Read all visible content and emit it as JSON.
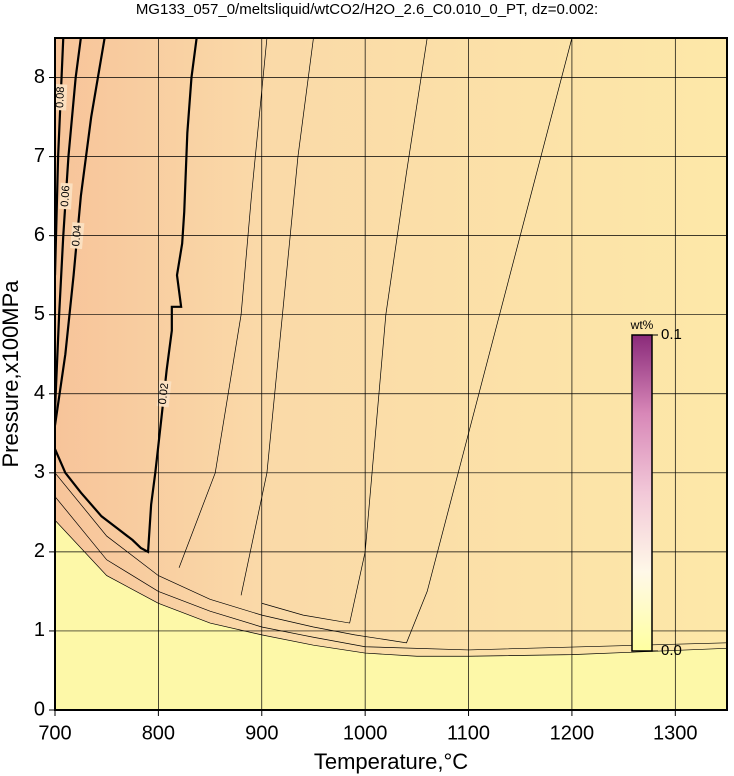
{
  "chart_data": {
    "type": "contour",
    "title": "MG133_057_0/meltsliquid/wtCO2/H2O_2.6_C0.010_0_PT, dz=0.002:",
    "xlabel": "Temperature,°C",
    "ylabel": "Pressure,x100MPa",
    "xlim": [
      700,
      1350
    ],
    "ylim": [
      0,
      8.5
    ],
    "xticks": [
      700,
      800,
      900,
      1000,
      1100,
      1200,
      1300
    ],
    "yticks": [
      0,
      1,
      2,
      3,
      4,
      5,
      6,
      7,
      8
    ],
    "grid": true,
    "colorbar": {
      "label": "wt%",
      "clim": [
        0,
        0.1
      ],
      "ticks": [
        {
          "value": 0,
          "label": "0.0"
        },
        0.1
      ]
    },
    "contours": [
      {
        "level": 0.001,
        "bold": false,
        "x": [
          700,
          750,
          800,
          850,
          900,
          950,
          1000,
          1050,
          1100,
          1200,
          1350
        ],
        "y": [
          2.4,
          1.7,
          1.35,
          1.1,
          0.95,
          0.82,
          0.72,
          0.68,
          0.68,
          0.7,
          0.78
        ]
      },
      {
        "level": 0.005,
        "bold": false,
        "x": [
          700,
          750,
          800,
          850,
          900,
          950,
          1000,
          1100,
          1350
        ],
        "y": [
          2.7,
          1.9,
          1.5,
          1.25,
          1.05,
          0.92,
          0.8,
          0.76,
          0.85
        ]
      },
      {
        "level": 0.01,
        "bold": false,
        "x": [
          700,
          750,
          800,
          850,
          900,
          950,
          990,
          1040,
          1060,
          1090,
          1130,
          1160,
          1200
        ],
        "y": [
          3.0,
          2.2,
          1.7,
          1.4,
          1.2,
          1.05,
          0.95,
          0.85,
          1.5,
          3.0,
          5.0,
          6.5,
          8.5
        ]
      },
      {
        "level": 0.012,
        "bold": false,
        "x": [
          900,
          940,
          985,
          1000,
          1010,
          1020,
          1040,
          1060
        ],
        "y": [
          1.35,
          1.2,
          1.1,
          2.0,
          3.5,
          5.0,
          6.8,
          8.5
        ]
      },
      {
        "level": 0.014,
        "bold": false,
        "x": [
          880,
          905,
          920,
          935,
          950
        ],
        "y": [
          1.45,
          3.0,
          5.0,
          7.0,
          8.5
        ]
      },
      {
        "level": 0.018,
        "bold": false,
        "x": [
          820,
          855,
          880,
          890,
          905
        ],
        "y": [
          1.8,
          3.0,
          5.0,
          6.5,
          8.5
        ]
      },
      {
        "level": 0.02,
        "bold": true,
        "x": [
          700,
          710,
          725,
          745,
          760,
          775,
          783,
          790,
          793,
          797,
          803,
          808,
          813,
          813,
          822,
          820,
          818,
          823,
          825,
          828,
          832,
          837
        ],
        "y": [
          3.3,
          3.0,
          2.75,
          2.45,
          2.3,
          2.15,
          2.05,
          2.0,
          2.6,
          3.0,
          3.7,
          4.3,
          4.8,
          5.1,
          5.1,
          5.3,
          5.5,
          5.9,
          6.3,
          7.3,
          8.0,
          8.5
        ]
      },
      {
        "level": 0.04,
        "bold": true,
        "x": [
          700,
          710,
          718,
          725,
          735,
          748
        ],
        "y": [
          3.6,
          4.5,
          5.5,
          6.5,
          7.5,
          8.5
        ]
      },
      {
        "level": 0.06,
        "bold": true,
        "x": [
          700,
          704,
          708,
          713,
          720,
          725
        ],
        "y": [
          3.8,
          5.0,
          6.0,
          7.0,
          8.0,
          8.5
        ]
      },
      {
        "level": 0.08,
        "bold": true,
        "x": [
          700,
          703,
          708
        ],
        "y": [
          5.5,
          7.0,
          8.5
        ]
      }
    ]
  }
}
